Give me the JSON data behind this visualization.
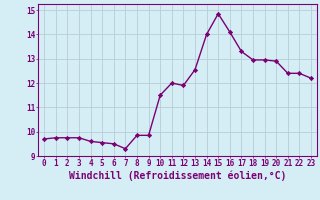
{
  "x": [
    0,
    1,
    2,
    3,
    4,
    5,
    6,
    7,
    8,
    9,
    10,
    11,
    12,
    13,
    14,
    15,
    16,
    17,
    18,
    19,
    20,
    21,
    22,
    23
  ],
  "y": [
    9.7,
    9.75,
    9.75,
    9.75,
    9.6,
    9.55,
    9.5,
    9.3,
    9.85,
    9.85,
    11.5,
    12.0,
    11.9,
    12.55,
    14.0,
    14.85,
    14.1,
    13.3,
    12.95,
    12.95,
    12.9,
    12.4,
    12.4,
    12.2
  ],
  "line_color": "#7b0074",
  "marker": "D",
  "marker_size": 2.2,
  "bg_color": "#d5eef5",
  "grid_color": "#b8cdd6",
  "xlabel": "Windchill (Refroidissement éolien,°C)",
  "ylabel": "",
  "xlim": [
    -0.5,
    23.5
  ],
  "ylim": [
    9.0,
    15.25
  ],
  "yticks": [
    9,
    10,
    11,
    12,
    13,
    14,
    15
  ],
  "xticks": [
    0,
    1,
    2,
    3,
    4,
    5,
    6,
    7,
    8,
    9,
    10,
    11,
    12,
    13,
    14,
    15,
    16,
    17,
    18,
    19,
    20,
    21,
    22,
    23
  ],
  "tick_label_color": "#7b0074",
  "tick_label_size": 5.5,
  "xlabel_size": 7.0,
  "line_width": 1.0,
  "spine_color": "#7b0074"
}
